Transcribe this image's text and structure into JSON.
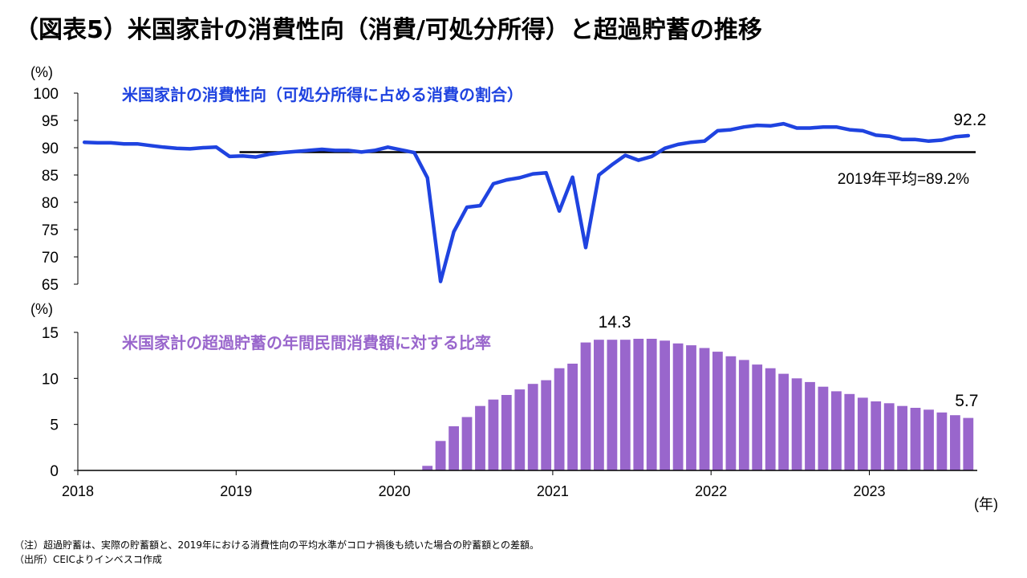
{
  "page": {
    "title": "（図表5）米国家計の消費性向（消費/可処分所得）と超過貯蓄の推移",
    "note": "（注）超過貯蓄は、実際の貯蓄額と、2019年における消費性向の平均水準がコロナ禍後も続いた場合の貯蓄額との差額。",
    "source": "（出所）CEICよりインベスコ作成"
  },
  "chart_data": [
    {
      "type": "line",
      "title": "米国家計の消費性向（可処分所得に占める消費の割合）",
      "yunit": "(%)",
      "ylim": [
        65,
        100
      ],
      "yticks": [
        100,
        95,
        90,
        85,
        80,
        75,
        70,
        65
      ],
      "color": "#1f43e0",
      "x": [
        "2018-01",
        "2018-02",
        "2018-03",
        "2018-04",
        "2018-05",
        "2018-06",
        "2018-07",
        "2018-08",
        "2018-09",
        "2018-10",
        "2018-11",
        "2018-12",
        "2019-01",
        "2019-02",
        "2019-03",
        "2019-04",
        "2019-05",
        "2019-06",
        "2019-07",
        "2019-08",
        "2019-09",
        "2019-10",
        "2019-11",
        "2019-12",
        "2020-01",
        "2020-02",
        "2020-03",
        "2020-04",
        "2020-05",
        "2020-06",
        "2020-07",
        "2020-08",
        "2020-09",
        "2020-10",
        "2020-11",
        "2020-12",
        "2021-01",
        "2021-02",
        "2021-03",
        "2021-04",
        "2021-05",
        "2021-06",
        "2021-07",
        "2021-08",
        "2021-09",
        "2021-10",
        "2021-11",
        "2021-12",
        "2022-01",
        "2022-02",
        "2022-03",
        "2022-04",
        "2022-05",
        "2022-06",
        "2022-07",
        "2022-08",
        "2022-09",
        "2022-10",
        "2022-11",
        "2022-12",
        "2023-01",
        "2023-02",
        "2023-03",
        "2023-04",
        "2023-05",
        "2023-06",
        "2023-07",
        "2023-08"
      ],
      "values": [
        91.0,
        90.9,
        90.9,
        90.7,
        90.7,
        90.4,
        90.1,
        89.9,
        89.8,
        90.0,
        90.1,
        88.4,
        88.5,
        88.3,
        88.8,
        89.1,
        89.3,
        89.5,
        89.7,
        89.5,
        89.5,
        89.2,
        89.5,
        90.1,
        89.6,
        89.1,
        84.5,
        65.5,
        74.6,
        79.1,
        79.4,
        83.4,
        84.1,
        84.5,
        85.2,
        85.4,
        78.4,
        84.6,
        71.7,
        85.0,
        86.9,
        88.6,
        87.7,
        88.4,
        89.9,
        90.6,
        91.0,
        91.2,
        93.1,
        93.3,
        93.8,
        94.1,
        94.0,
        94.4,
        93.6,
        93.6,
        93.8,
        93.8,
        93.3,
        93.1,
        92.3,
        92.1,
        91.5,
        91.5,
        91.2,
        91.4,
        92.0,
        92.2
      ],
      "end_label": "92.2",
      "reference": {
        "value": 89.2,
        "label": "2019年平均=89.2%",
        "from": "2019-01",
        "to": "2023-08"
      }
    },
    {
      "type": "bar",
      "title": "米国家計の超過貯蓄の年間民間消費額に対する比率",
      "yunit": "(%)",
      "ylim": [
        0,
        15
      ],
      "yticks": [
        15,
        10,
        5,
        0
      ],
      "color": "#9966cc",
      "x": [
        "2020-03",
        "2020-04",
        "2020-05",
        "2020-06",
        "2020-07",
        "2020-08",
        "2020-09",
        "2020-10",
        "2020-11",
        "2020-12",
        "2021-01",
        "2021-02",
        "2021-03",
        "2021-04",
        "2021-05",
        "2021-06",
        "2021-07",
        "2021-08",
        "2021-09",
        "2021-10",
        "2021-11",
        "2021-12",
        "2022-01",
        "2022-02",
        "2022-03",
        "2022-04",
        "2022-05",
        "2022-06",
        "2022-07",
        "2022-08",
        "2022-09",
        "2022-10",
        "2022-11",
        "2022-12",
        "2023-01",
        "2023-02",
        "2023-03",
        "2023-04",
        "2023-05",
        "2023-06",
        "2023-07",
        "2023-08"
      ],
      "values": [
        0.5,
        3.2,
        4.8,
        5.8,
        7.0,
        7.7,
        8.2,
        8.8,
        9.4,
        9.8,
        11.1,
        11.6,
        13.9,
        14.2,
        14.2,
        14.2,
        14.3,
        14.3,
        14.1,
        13.8,
        13.6,
        13.3,
        12.9,
        12.4,
        12.0,
        11.5,
        11.1,
        10.5,
        10.0,
        9.6,
        9.1,
        8.6,
        8.3,
        7.9,
        7.5,
        7.3,
        7.0,
        6.8,
        6.6,
        6.3,
        6.0,
        5.7
      ],
      "peak_label": "14.3",
      "end_label": "5.7"
    }
  ],
  "xaxis": {
    "labels": [
      "2018",
      "2019",
      "2020",
      "2021",
      "2022",
      "2023"
    ],
    "unit": "(年)"
  }
}
